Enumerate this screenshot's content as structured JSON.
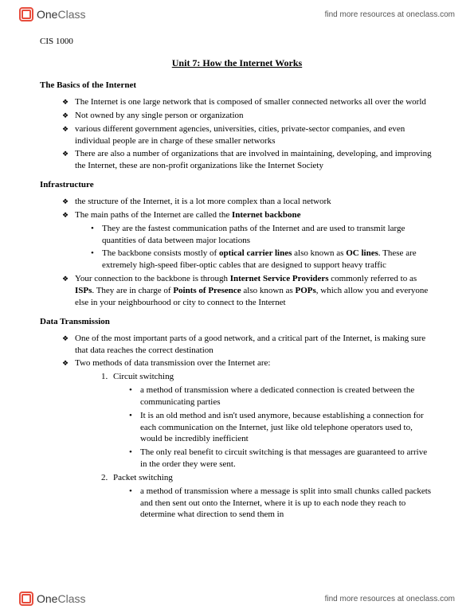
{
  "brand": {
    "one": "One",
    "class": "Class",
    "find_more": "find more resources at oneclass.com"
  },
  "course": "CIS 1000",
  "unit_title": "Unit 7: How the Internet Works",
  "sections": {
    "basics": {
      "title": "The Basics of the Internet",
      "items": [
        "The Internet is one large network that is composed of smaller connected networks all over the world",
        "Not owned by any single person or organization",
        "various different government agencies, universities, cities, private-sector companies, and even individual people are in charge of these smaller networks",
        "There are also a number of organizations that are involved in maintaining, developing, and improving the Internet, these are non-profit organizations like the Internet Society"
      ]
    },
    "infra": {
      "title": "Infrastructure",
      "i0": "the structure of the Internet, it is a lot more complex than a local network",
      "i1_pre": "The main paths of the Internet are called the ",
      "i1_bold": "Internet backbone",
      "i1_sub0": "They are the fastest communication paths of the Internet and are used to transmit large quantities of data between major locations",
      "i1_sub1_a": "The backbone consists mostly of ",
      "i1_sub1_b": "optical carrier lines",
      "i1_sub1_c": " also known as ",
      "i1_sub1_d": "OC lines",
      "i1_sub1_e": ". These are extremely high-speed fiber-optic cables that are designed to support heavy traffic",
      "i2_a": "Your connection to the backbone is through ",
      "i2_b": "Internet Service Providers",
      "i2_c": " commonly referred to as ",
      "i2_d": "ISPs",
      "i2_e": ". They are in charge of ",
      "i2_f": "Points of Presence",
      "i2_g": " also known as ",
      "i2_h": "POPs",
      "i2_i": ", which allow you and everyone else in your neighbourhood or city to connect to the Internet"
    },
    "data": {
      "title": "Data Transmission",
      "i0": "One of the most important parts of a good network, and a critical part of the Internet, is making sure that data reaches the correct destination",
      "i1": "Two methods of data transmission over the Internet are:",
      "m1": "Circuit switching",
      "m1_sub": [
        "a method of transmission where a dedicated connection is created between the communicating parties",
        "It is an old method and isn't used anymore, because establishing a connection for each communication on the Internet, just like old telephone operators used to, would be incredibly inefficient",
        "The only real benefit to circuit switching is that messages are guaranteed to arrive in the order they were sent."
      ],
      "m2": "Packet switching",
      "m2_sub": [
        "a method of transmission where a message is split into small chunks called packets and then sent out onto the Internet, where it is up to each node they reach to determine what direction to send them in"
      ]
    }
  }
}
